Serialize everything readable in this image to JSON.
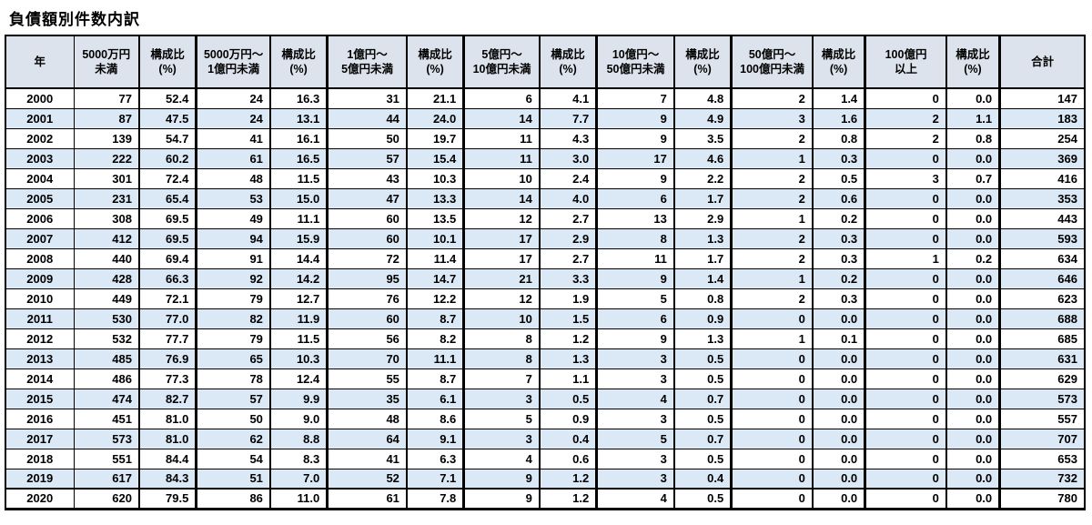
{
  "chart_data": {
    "type": "table",
    "title": "負債額別件数内訳",
    "columns": [
      {
        "id": "year",
        "label": "年",
        "kind": "year"
      },
      {
        "id": "under-50m",
        "label": "5000万円\n未満",
        "kind": "count"
      },
      {
        "id": "under-50m-pct",
        "label": "構成比\n(%)",
        "kind": "ratio"
      },
      {
        "id": "range-50m-100m",
        "label": "5000万円～\n1億円未満",
        "kind": "count"
      },
      {
        "id": "range-50m-100m-pct",
        "label": "構成比\n(%)",
        "kind": "ratio"
      },
      {
        "id": "range-100m-500m",
        "label": "1億円～\n5億円未満",
        "kind": "count"
      },
      {
        "id": "range-100m-500m-pct",
        "label": "構成比\n(%)",
        "kind": "ratio"
      },
      {
        "id": "range-500m-1b",
        "label": "5億円～\n10億円未満",
        "kind": "count"
      },
      {
        "id": "range-500m-1b-pct",
        "label": "構成比\n(%)",
        "kind": "ratio"
      },
      {
        "id": "range-1b-5b",
        "label": "10億円～\n50億円未満",
        "kind": "count"
      },
      {
        "id": "range-1b-5b-pct",
        "label": "構成比\n(%)",
        "kind": "ratio"
      },
      {
        "id": "range-5b-10b",
        "label": "50億円～\n100億円未満",
        "kind": "count"
      },
      {
        "id": "range-5b-10b-pct",
        "label": "構成比\n(%)",
        "kind": "ratio"
      },
      {
        "id": "over-10b",
        "label": "100億円\n以上",
        "kind": "count"
      },
      {
        "id": "over-10b-pct",
        "label": "構成比\n(%)",
        "kind": "ratio"
      },
      {
        "id": "total",
        "label": "合計",
        "kind": "total"
      }
    ],
    "rows": [
      [
        "2000",
        77,
        "52.4",
        24,
        "16.3",
        31,
        "21.1",
        6,
        "4.1",
        7,
        "4.8",
        2,
        "1.4",
        0,
        "0.0",
        147
      ],
      [
        "2001",
        87,
        "47.5",
        24,
        "13.1",
        44,
        "24.0",
        14,
        "7.7",
        9,
        "4.9",
        3,
        "1.6",
        2,
        "1.1",
        183
      ],
      [
        "2002",
        139,
        "54.7",
        41,
        "16.1",
        50,
        "19.7",
        11,
        "4.3",
        9,
        "3.5",
        2,
        "0.8",
        2,
        "0.8",
        254
      ],
      [
        "2003",
        222,
        "60.2",
        61,
        "16.5",
        57,
        "15.4",
        11,
        "3.0",
        17,
        "4.6",
        1,
        "0.3",
        0,
        "0.0",
        369
      ],
      [
        "2004",
        301,
        "72.4",
        48,
        "11.5",
        43,
        "10.3",
        10,
        "2.4",
        9,
        "2.2",
        2,
        "0.5",
        3,
        "0.7",
        416
      ],
      [
        "2005",
        231,
        "65.4",
        53,
        "15.0",
        47,
        "13.3",
        14,
        "4.0",
        6,
        "1.7",
        2,
        "0.6",
        0,
        "0.0",
        353
      ],
      [
        "2006",
        308,
        "69.5",
        49,
        "11.1",
        60,
        "13.5",
        12,
        "2.7",
        13,
        "2.9",
        1,
        "0.2",
        0,
        "0.0",
        443
      ],
      [
        "2007",
        412,
        "69.5",
        94,
        "15.9",
        60,
        "10.1",
        17,
        "2.9",
        8,
        "1.3",
        2,
        "0.3",
        0,
        "0.0",
        593
      ],
      [
        "2008",
        440,
        "69.4",
        91,
        "14.4",
        72,
        "11.4",
        17,
        "2.7",
        11,
        "1.7",
        2,
        "0.3",
        1,
        "0.2",
        634
      ],
      [
        "2009",
        428,
        "66.3",
        92,
        "14.2",
        95,
        "14.7",
        21,
        "3.3",
        9,
        "1.4",
        1,
        "0.2",
        0,
        "0.0",
        646
      ],
      [
        "2010",
        449,
        "72.1",
        79,
        "12.7",
        76,
        "12.2",
        12,
        "1.9",
        5,
        "0.8",
        2,
        "0.3",
        0,
        "0.0",
        623
      ],
      [
        "2011",
        530,
        "77.0",
        82,
        "11.9",
        60,
        "8.7",
        10,
        "1.5",
        6,
        "0.9",
        0,
        "0.0",
        0,
        "0.0",
        688
      ],
      [
        "2012",
        532,
        "77.7",
        79,
        "11.5",
        56,
        "8.2",
        8,
        "1.2",
        9,
        "1.3",
        1,
        "0.1",
        0,
        "0.0",
        685
      ],
      [
        "2013",
        485,
        "76.9",
        65,
        "10.3",
        70,
        "11.1",
        8,
        "1.3",
        3,
        "0.5",
        0,
        "0.0",
        0,
        "0.0",
        631
      ],
      [
        "2014",
        486,
        "77.3",
        78,
        "12.4",
        55,
        "8.7",
        7,
        "1.1",
        3,
        "0.5",
        0,
        "0.0",
        0,
        "0.0",
        629
      ],
      [
        "2015",
        474,
        "82.7",
        57,
        "9.9",
        35,
        "6.1",
        3,
        "0.5",
        4,
        "0.7",
        0,
        "0.0",
        0,
        "0.0",
        573
      ],
      [
        "2016",
        451,
        "81.0",
        50,
        "9.0",
        48,
        "8.6",
        5,
        "0.9",
        3,
        "0.5",
        0,
        "0.0",
        0,
        "0.0",
        557
      ],
      [
        "2017",
        573,
        "81.0",
        62,
        "8.8",
        64,
        "9.1",
        3,
        "0.4",
        5,
        "0.7",
        0,
        "0.0",
        0,
        "0.0",
        707
      ],
      [
        "2018",
        551,
        "84.4",
        54,
        "8.3",
        41,
        "6.3",
        4,
        "0.6",
        3,
        "0.5",
        0,
        "0.0",
        0,
        "0.0",
        653
      ],
      [
        "2019",
        617,
        "84.3",
        51,
        "7.0",
        52,
        "7.1",
        9,
        "1.2",
        3,
        "0.4",
        0,
        "0.0",
        0,
        "0.0",
        732
      ],
      [
        "2020",
        620,
        "79.5",
        86,
        "11.0",
        61,
        "7.8",
        9,
        "1.2",
        4,
        "0.5",
        0,
        "0.0",
        0,
        "0.0",
        780
      ]
    ]
  }
}
